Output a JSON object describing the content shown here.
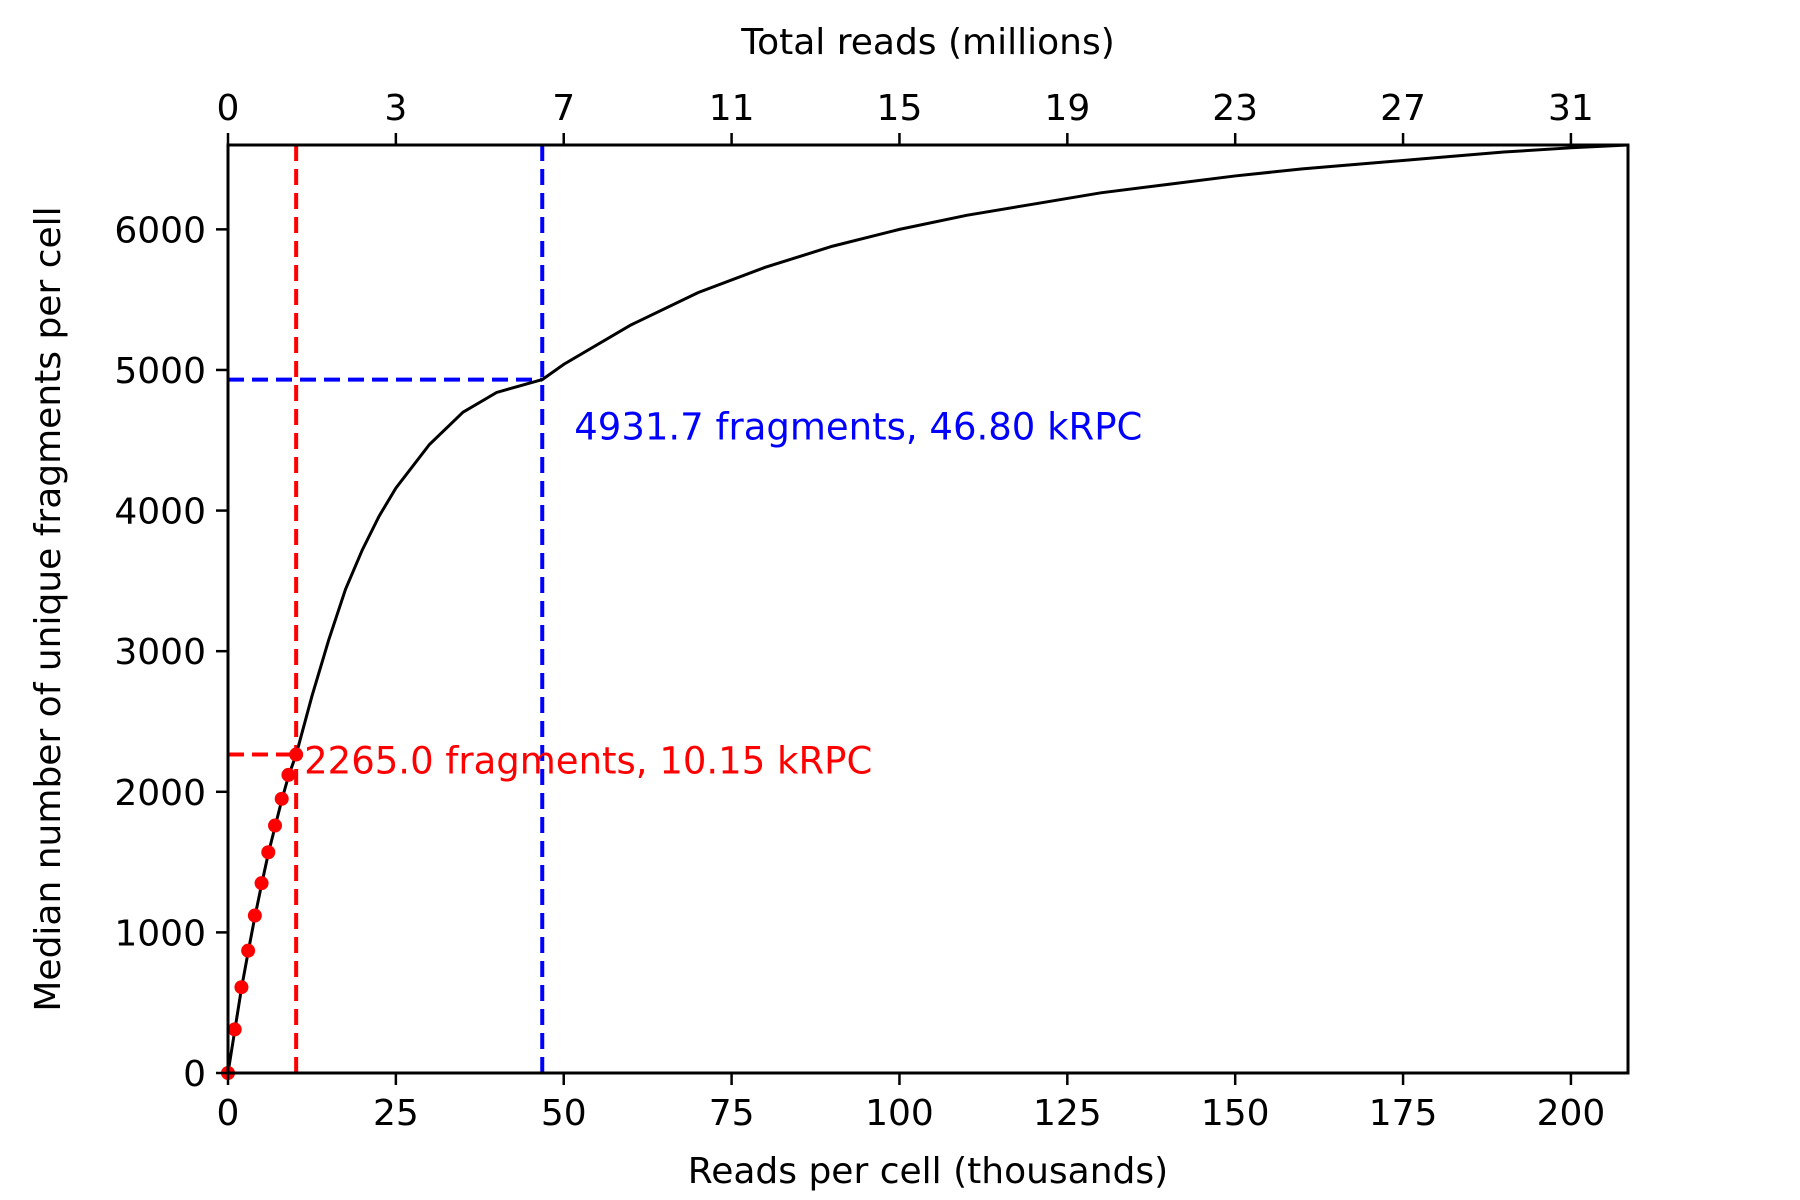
{
  "chart_data": {
    "type": "line",
    "title": "",
    "xlabel": "Reads per cell (thousands)",
    "ylabel": "Median number of unique fragments per cell",
    "top_xlabel": "Total reads (millions)",
    "xlim": [
      0,
      208.5
    ],
    "ylim": [
      0,
      6600
    ],
    "x_ticks": [
      0,
      25,
      50,
      75,
      100,
      125,
      150,
      175,
      200
    ],
    "x_tick_labels": [
      "0",
      "25",
      "50",
      "75",
      "100",
      "125",
      "150",
      "175",
      "200"
    ],
    "y_ticks": [
      0,
      1000,
      2000,
      3000,
      4000,
      5000,
      6000
    ],
    "y_tick_labels": [
      "0",
      "1000",
      "2000",
      "3000",
      "4000",
      "5000",
      "6000"
    ],
    "top_ticks_at_reads_per_cell": [
      0,
      25,
      50,
      75,
      100,
      125,
      150,
      175,
      200
    ],
    "top_tick_labels": [
      "0",
      "3",
      "7",
      "11",
      "15",
      "19",
      "23",
      "27",
      "31"
    ],
    "grid": false,
    "colors": {
      "curve": "#000000",
      "observed": "#ff0000",
      "marker_low": "#ff0000",
      "marker_high": "#0000ff",
      "axes": "#000000"
    },
    "series": [
      {
        "kind": "line",
        "color": "#000000",
        "x": [
          0,
          1,
          2,
          3,
          4,
          5,
          6,
          7,
          8,
          9,
          10.15,
          12.5,
          15,
          17.5,
          20,
          22.5,
          25,
          30,
          35,
          40,
          46.8,
          50,
          60,
          70,
          80,
          90,
          100,
          110,
          120,
          130,
          140,
          150,
          160,
          170,
          180,
          190,
          200,
          208.5
        ],
        "y": [
          0,
          300,
          600,
          860,
          1110,
          1340,
          1560,
          1750,
          1940,
          2110,
          2265,
          2680,
          3080,
          3440,
          3720,
          3960,
          4160,
          4470,
          4700,
          4840,
          4931.7,
          5040,
          5320,
          5550,
          5730,
          5880,
          6000,
          6100,
          6180,
          6260,
          6320,
          6380,
          6430,
          6470,
          6510,
          6550,
          6580,
          6600
        ]
      },
      {
        "kind": "scatter",
        "color": "#ff0000",
        "x": [
          0,
          1,
          2,
          3,
          4,
          5,
          6,
          7,
          8,
          9,
          10.15
        ],
        "y": [
          0,
          310,
          610,
          870,
          1120,
          1350,
          1570,
          1760,
          1950,
          2120,
          2265
        ]
      }
    ],
    "markers": [
      {
        "color": "#ff0000",
        "x": 10.15,
        "y": 2265.0,
        "label": "2265.0 fragments, 10.15 kRPC"
      },
      {
        "color": "#0000ff",
        "x": 46.8,
        "y": 4931.7,
        "label": "4931.7 fragments, 46.80 kRPC"
      }
    ]
  }
}
